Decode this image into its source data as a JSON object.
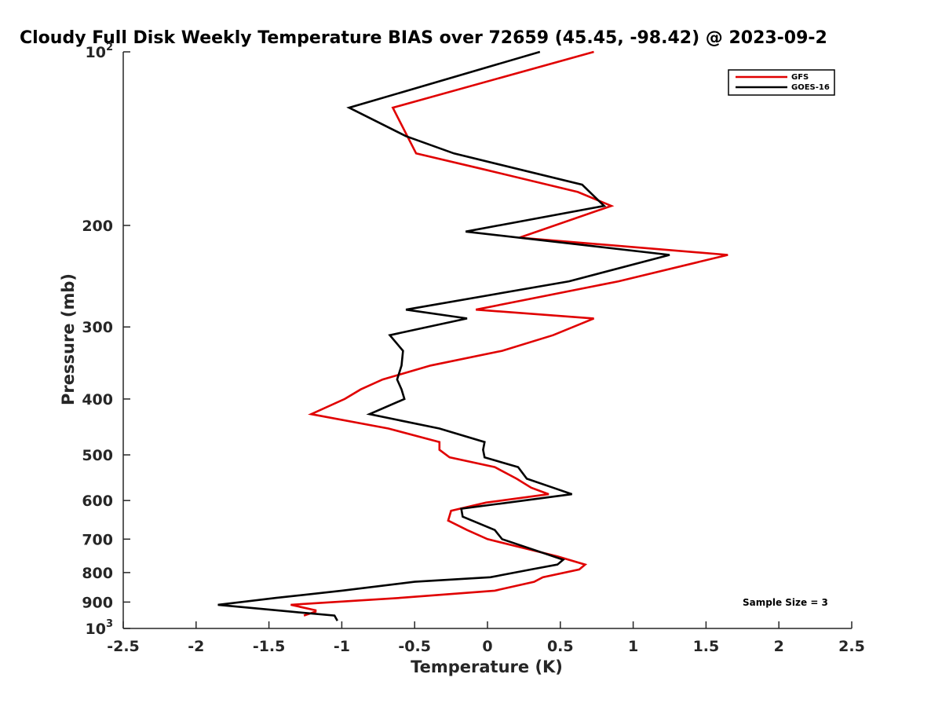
{
  "chart_data": {
    "type": "line",
    "title": "Cloudy Full Disk Weekly Temperature BIAS over 72659 (45.45, -98.42) @ 2023-09-2",
    "xlabel": "Temperature (K)",
    "ylabel": "Pressure (mb)",
    "xlim": [
      -2.5,
      2.5
    ],
    "ylim": [
      100,
      1000
    ],
    "yscale": "log",
    "yreversed": true,
    "grid": false,
    "legend_position": "top-right",
    "x_ticks": [
      "-2.5",
      "-2",
      "-1.5",
      "-1",
      "-0.5",
      "0",
      "0.5",
      "1",
      "1.5",
      "2",
      "2.5"
    ],
    "x_tick_values": [
      -2.5,
      -2,
      -1.5,
      -1,
      -0.5,
      0,
      0.5,
      1,
      1.5,
      2,
      2.5
    ],
    "y_ticks": [
      {
        "value": 100,
        "base": "10",
        "exp": "2"
      },
      {
        "value": 200,
        "label": "200"
      },
      {
        "value": 300,
        "label": "300"
      },
      {
        "value": 400,
        "label": "400"
      },
      {
        "value": 500,
        "label": "500"
      },
      {
        "value": 600,
        "label": "600"
      },
      {
        "value": 700,
        "label": "700"
      },
      {
        "value": 800,
        "label": "800"
      },
      {
        "value": 900,
        "label": "900"
      },
      {
        "value": 1000,
        "base": "10",
        "exp": "3"
      }
    ],
    "series": [
      {
        "name": "GFS",
        "color": "#e00000",
        "points": [
          [
            0.73,
            100
          ],
          [
            -0.65,
            125
          ],
          [
            -0.49,
            150
          ],
          [
            -0.02,
            160
          ],
          [
            0.62,
            175
          ],
          [
            0.85,
            185
          ],
          [
            0.22,
            210
          ],
          [
            1.65,
            225
          ],
          [
            0.9,
            250
          ],
          [
            -0.08,
            280
          ],
          [
            0.73,
            290
          ],
          [
            0.45,
            310
          ],
          [
            0.1,
            330
          ],
          [
            -0.39,
            350
          ],
          [
            -0.72,
            370
          ],
          [
            -0.87,
            385
          ],
          [
            -0.98,
            400
          ],
          [
            -1.21,
            425
          ],
          [
            -0.68,
            450
          ],
          [
            -0.33,
            475
          ],
          [
            -0.33,
            490
          ],
          [
            -0.26,
            505
          ],
          [
            0.05,
            525
          ],
          [
            0.2,
            550
          ],
          [
            0.3,
            570
          ],
          [
            0.42,
            585
          ],
          [
            -0.01,
            605
          ],
          [
            -0.25,
            625
          ],
          [
            -0.27,
            650
          ],
          [
            -0.14,
            675
          ],
          [
            0.0,
            700
          ],
          [
            0.48,
            750
          ],
          [
            0.67,
            775
          ],
          [
            0.63,
            790
          ],
          [
            0.38,
            815
          ],
          [
            0.32,
            830
          ],
          [
            0.05,
            860
          ],
          [
            -0.6,
            885
          ],
          [
            -1.35,
            910
          ],
          [
            -1.18,
            930
          ],
          [
            -1.18,
            935
          ],
          [
            -1.26,
            950
          ]
        ]
      },
      {
        "name": "GOES-16",
        "color": "#000000",
        "points": [
          [
            0.36,
            100
          ],
          [
            -0.95,
            125
          ],
          [
            -0.56,
            140
          ],
          [
            -0.23,
            150
          ],
          [
            0.65,
            170
          ],
          [
            0.8,
            185
          ],
          [
            -0.15,
            205
          ],
          [
            1.25,
            225
          ],
          [
            0.56,
            250
          ],
          [
            -0.56,
            280
          ],
          [
            -0.14,
            290
          ],
          [
            -0.67,
            310
          ],
          [
            -0.58,
            330
          ],
          [
            -0.59,
            350
          ],
          [
            -0.62,
            370
          ],
          [
            -0.59,
            385
          ],
          [
            -0.57,
            400
          ],
          [
            -0.81,
            425
          ],
          [
            -0.33,
            450
          ],
          [
            -0.02,
            475
          ],
          [
            -0.03,
            490
          ],
          [
            -0.02,
            505
          ],
          [
            0.21,
            525
          ],
          [
            0.27,
            550
          ],
          [
            0.45,
            570
          ],
          [
            0.58,
            585
          ],
          [
            -0.18,
            620
          ],
          [
            -0.17,
            640
          ],
          [
            0.05,
            675
          ],
          [
            0.1,
            700
          ],
          [
            0.52,
            760
          ],
          [
            0.48,
            775
          ],
          [
            0.3,
            790
          ],
          [
            0.02,
            815
          ],
          [
            -0.5,
            830
          ],
          [
            -1.0,
            860
          ],
          [
            -1.45,
            885
          ],
          [
            -1.85,
            910
          ],
          [
            -1.35,
            935
          ],
          [
            -1.05,
            950
          ],
          [
            -1.03,
            970
          ]
        ]
      }
    ],
    "annotations": [
      {
        "text": "Sample Size = 3"
      }
    ]
  }
}
